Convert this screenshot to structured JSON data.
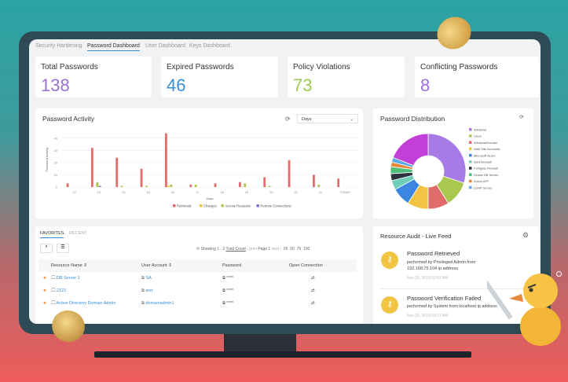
{
  "tabs": [
    "Security Hardening",
    "Password Dashboard",
    "User Dashboard",
    "Keys Dashboard"
  ],
  "stats": [
    {
      "label": "Total Passwords",
      "value": "138",
      "color": "#9b6fd6"
    },
    {
      "label": "Expired Passwords",
      "value": "46",
      "color": "#3a8fd8"
    },
    {
      "label": "Policy Violations",
      "value": "73",
      "color": "#9ec94f"
    },
    {
      "label": "Conflicting Passwords",
      "value": "8",
      "color": "#9b6fd6"
    }
  ],
  "activity": {
    "title": "Password Activity",
    "range_select": "Days"
  },
  "chart_data": [
    {
      "type": "bar",
      "title": "Password Activity",
      "xlabel": "Days",
      "ylabel": "Password Activity",
      "ylim": [
        0,
        45
      ],
      "yticks": [
        0,
        10,
        20,
        30,
        40
      ],
      "categories": [
        "12",
        "13",
        "14",
        "15",
        "16",
        "17",
        "18",
        "19",
        "20",
        "21",
        "22",
        "TODAY"
      ],
      "series": [
        {
          "name": "Retrievals",
          "color": "#e06c6c",
          "values": [
            3,
            32,
            24,
            15,
            44,
            2,
            3,
            4,
            8,
            22,
            10,
            7
          ]
        },
        {
          "name": "Changes",
          "color": "#f3c343",
          "values": [
            0,
            0,
            0,
            0,
            1,
            0,
            0,
            0,
            0,
            0,
            0,
            0
          ]
        },
        {
          "name": "Access Requests",
          "color": "#a8c84f",
          "values": [
            0,
            4,
            1,
            1,
            2,
            2,
            0,
            3,
            1,
            0,
            2,
            0
          ]
        },
        {
          "name": "Remote Connections",
          "color": "#8a6ee0",
          "values": [
            0,
            1,
            0,
            0,
            0,
            0,
            0,
            0,
            0,
            0,
            0,
            0
          ]
        }
      ],
      "legend": "bottom"
    },
    {
      "type": "pie",
      "title": "Password Distribution",
      "labels": [
        "Windows",
        "Linux",
        "WindowsDomain",
        "Web Site Accounts",
        "Microsoft Azure",
        "ASA Firewall",
        "Fortigate Firewall",
        "Oracle DB Server",
        "Aruba ATP",
        "LDAP Server",
        ""
      ],
      "values": [
        30,
        11,
        9,
        9,
        8,
        4,
        3,
        3,
        2,
        2,
        19
      ],
      "colors": [
        "#a77ae6",
        "#a8c84f",
        "#e06c6c",
        "#f3c343",
        "#3a86e0",
        "#6fcfb8",
        "#2c3440",
        "#4fbf7a",
        "#e8893a",
        "#5aa8e8",
        "#c23fd8"
      ],
      "legend": "right"
    }
  ],
  "distribution": {
    "title": "Password Distribution"
  },
  "table": {
    "tabs": [
      "FAVORITES",
      "RECENT"
    ],
    "showing": "Showing 1 - 3",
    "total": "Total Count",
    "prev": "‹ prev",
    "page": "Page 1",
    "next": "next ›",
    "sizes": [
      "25",
      "50",
      "75",
      "100"
    ],
    "headers": [
      "Resource Name",
      "User Account",
      "Password",
      "Open Connection"
    ],
    "rows": [
      {
        "name": "DB Server 1",
        "account": "SA",
        "pw": "****"
      },
      {
        "name": "2123",
        "account": "test",
        "pw": "****"
      },
      {
        "name": "Active Directory Domain Admin",
        "account": "domainadmin1",
        "pw": "****"
      }
    ]
  },
  "audit": {
    "title": "Resource Audit - Live Feed",
    "items": [
      {
        "title": "Password Retrieved",
        "desc": "performed by Privileged Admin from 192.168.75.104 ip address",
        "time": "Nov 23, 2023 03:57 AM"
      },
      {
        "title": "Password Verification Failed",
        "desc": "performed by System from localhost ip address",
        "time": "Nov 23, 2023 03:27 AM"
      }
    ]
  }
}
